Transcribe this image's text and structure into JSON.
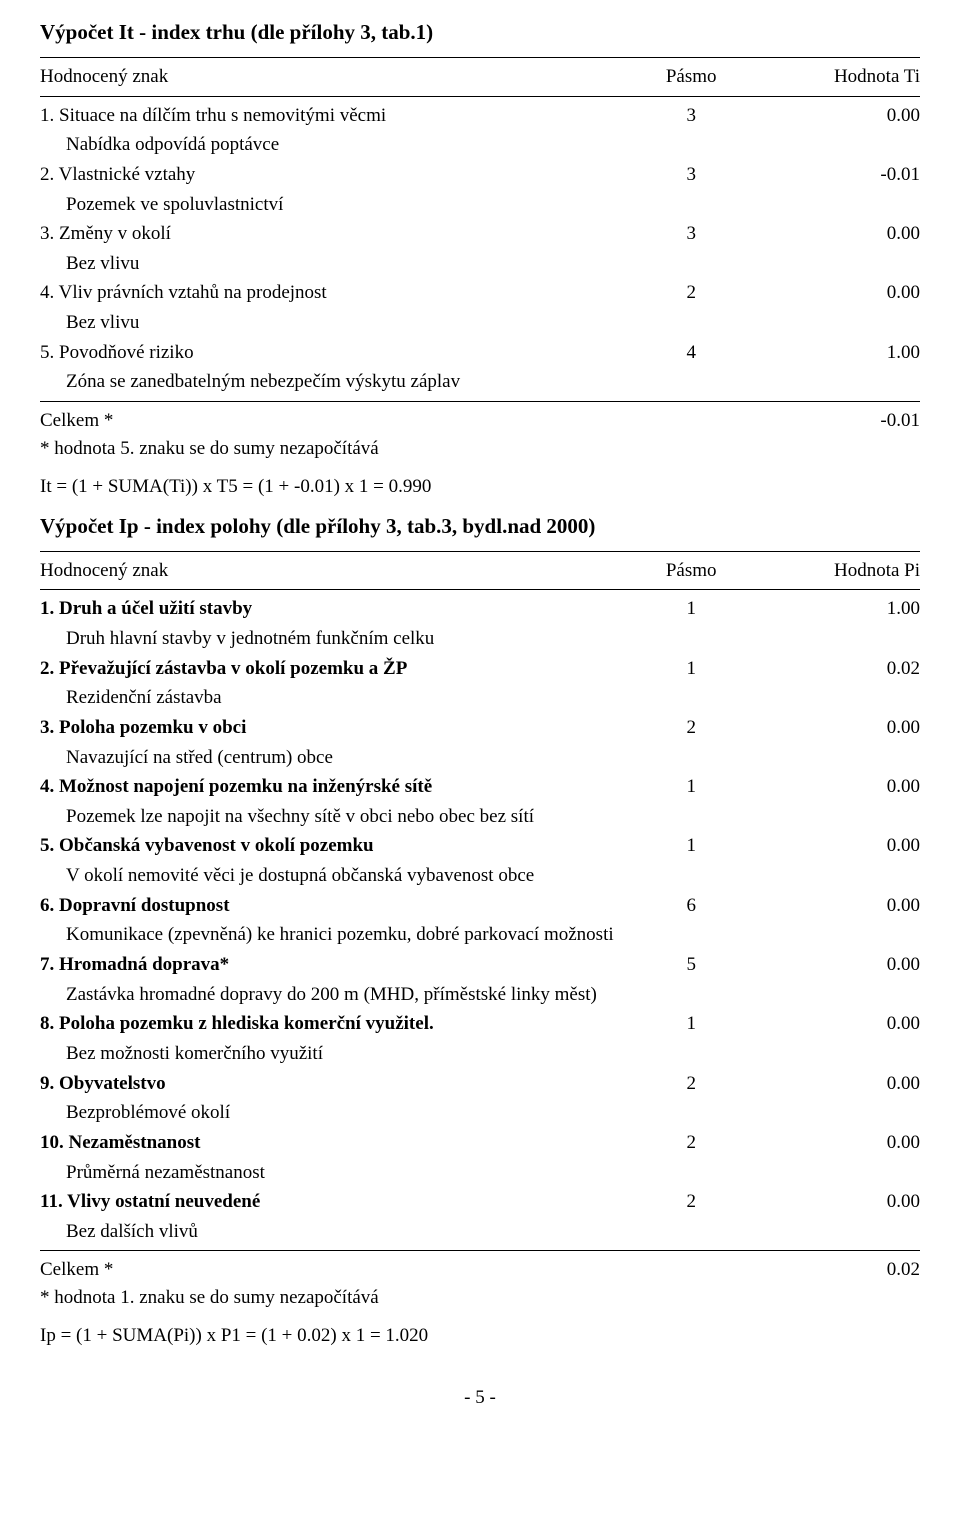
{
  "section1": {
    "title": "Výpočet It - index trhu (dle přílohy 3, tab.1)",
    "header": {
      "c1": "Hodnocený znak",
      "c2": "Pásmo",
      "c3": "Hodnota Ti"
    },
    "rows": [
      {
        "label": "1. Situace na dílčím trhu s nemovitými věcmi",
        "band": "3",
        "val": "0.00",
        "desc": "Nabídka odpovídá poptávce",
        "bold": false
      },
      {
        "label": "2. Vlastnické vztahy",
        "band": "3",
        "val": "-0.01",
        "desc": "Pozemek ve spoluvlastnictví",
        "bold": false
      },
      {
        "label": "3. Změny v okolí",
        "band": "3",
        "val": "0.00",
        "desc": "Bez vlivu",
        "bold": false
      },
      {
        "label": "4. Vliv právních vztahů na prodejnost",
        "band": "2",
        "val": "0.00",
        "desc": "Bez vlivu",
        "bold": false
      },
      {
        "label": "5. Povodňové riziko",
        "band": "4",
        "val": "1.00",
        "desc": "Zóna se zanedbatelným nebezpečím výskytu záplav",
        "bold": false
      }
    ],
    "total_label": "Celkem *",
    "total_val": "-0.01",
    "footnote": "* hodnota 5. znaku se do sumy nezapočítává",
    "formula": "It = (1 + SUMA(Ti)) x T5 = (1 + -0.01) x 1 = 0.990"
  },
  "section2": {
    "title": "Výpočet Ip - index polohy (dle přílohy 3, tab.3, bydl.nad 2000)",
    "header": {
      "c1": "Hodnocený znak",
      "c2": "Pásmo",
      "c3": "Hodnota Pi"
    },
    "rows": [
      {
        "label": "1. Druh a účel užití stavby",
        "band": "1",
        "val": "1.00",
        "desc": "Druh hlavní stavby v jednotném funkčním celku",
        "bold": true
      },
      {
        "label": "2. Převažující zástavba v okolí pozemku a ŽP",
        "band": "1",
        "val": "0.02",
        "desc": "Rezidenční zástavba",
        "bold": true
      },
      {
        "label": "3. Poloha pozemku v obci",
        "band": "2",
        "val": "0.00",
        "desc": "Navazující na střed (centrum) obce",
        "bold": true
      },
      {
        "label": "4. Možnost napojení pozemku na inženýrské sítě",
        "band": "1",
        "val": "0.00",
        "desc": "Pozemek lze napojit na všechny sítě v obci nebo obec bez sítí",
        "bold": true
      },
      {
        "label": "5. Občanská vybavenost v okolí pozemku",
        "band": "1",
        "val": "0.00",
        "desc": "V okolí nemovité věci je dostupná občanská vybavenost obce",
        "bold": true
      },
      {
        "label": "6. Dopravní dostupnost",
        "band": "6",
        "val": "0.00",
        "desc": "Komunikace (zpevněná) ke hranici pozemku, dobré parkovací možnosti",
        "bold": true
      },
      {
        "label": "7. Hromadná doprava*",
        "band": "5",
        "val": "0.00",
        "desc": "Zastávka hromadné dopravy do 200 m (MHD, příměstské linky měst)",
        "bold": true
      },
      {
        "label": "8. Poloha pozemku z hlediska komerční využitel.",
        "band": "1",
        "val": "0.00",
        "desc": "Bez možnosti komerčního využití",
        "bold": true
      },
      {
        "label": "9. Obyvatelstvo",
        "band": "2",
        "val": "0.00",
        "desc": "Bezproblémové okolí",
        "bold": true
      },
      {
        "label": "10. Nezaměstnanost",
        "band": "2",
        "val": "0.00",
        "desc": "Průměrná nezaměstnanost",
        "bold": true
      },
      {
        "label": "11. Vlivy ostatní neuvedené",
        "band": "2",
        "val": "0.00",
        "desc": "Bez dalších vlivů",
        "bold": true
      }
    ],
    "total_label": "Celkem *",
    "total_val": "0.02",
    "footnote": "* hodnota 1. znaku se do sumy nezapočítává",
    "formula": "Ip = (1 + SUMA(Pi)) x P1 = (1 + 0.02) x 1 = 1.020"
  },
  "page_number": "- 5 -"
}
